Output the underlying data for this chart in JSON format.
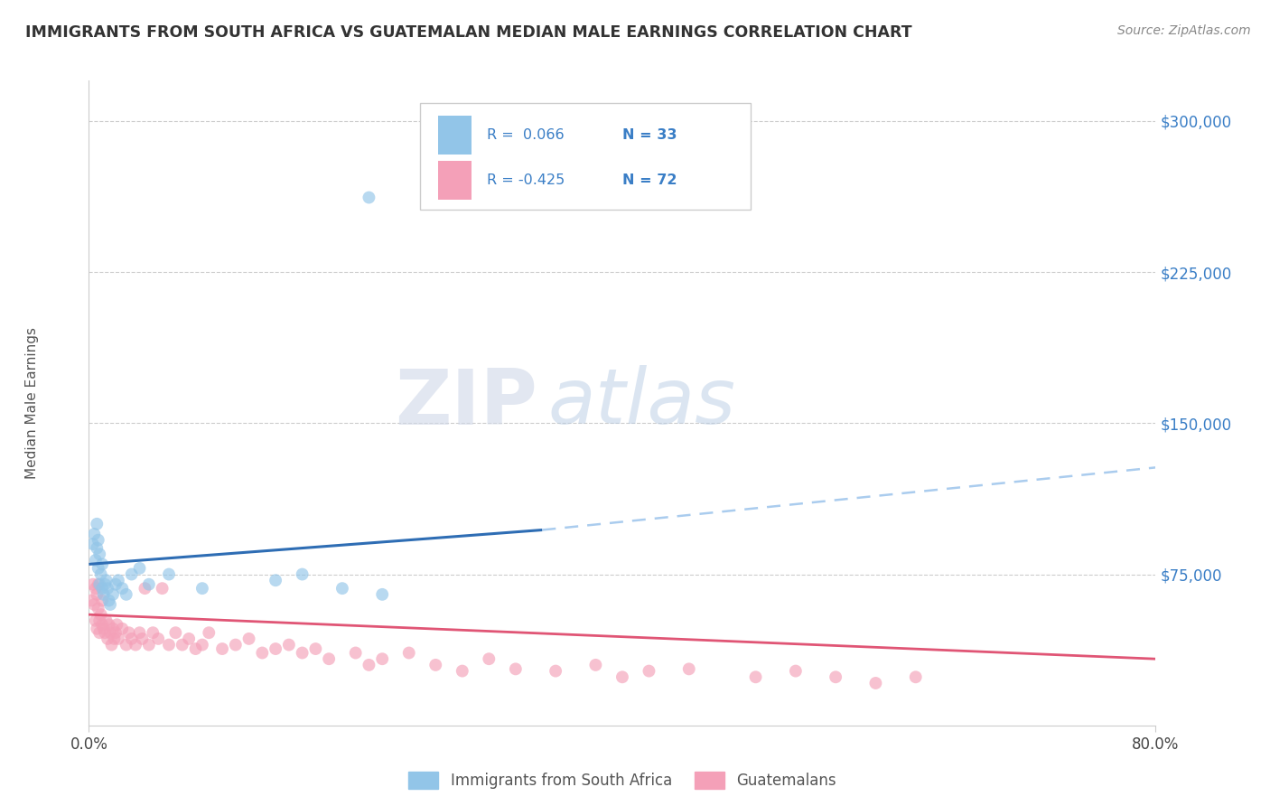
{
  "title": "IMMIGRANTS FROM SOUTH AFRICA VS GUATEMALAN MEDIAN MALE EARNINGS CORRELATION CHART",
  "source": "Source: ZipAtlas.com",
  "ylabel": "Median Male Earnings",
  "xlim": [
    0.0,
    0.8
  ],
  "ylim": [
    0,
    320000
  ],
  "yticks": [
    0,
    75000,
    150000,
    225000,
    300000
  ],
  "ytick_labels": [
    "",
    "$75,000",
    "$150,000",
    "$225,000",
    "$300,000"
  ],
  "xtick_labels": [
    "0.0%",
    "80.0%"
  ],
  "legend_r1": "R =  0.066",
  "legend_n1": "N = 33",
  "legend_r2": "R = -0.425",
  "legend_n2": "N = 72",
  "color_blue": "#92C5E8",
  "color_pink": "#F4A0B8",
  "line_blue": "#2E6DB4",
  "line_pink": "#E05575",
  "line_dashed": "#AACCEE",
  "watermark_zip": "ZIP",
  "watermark_atlas": "atlas",
  "background": "#FFFFFF",
  "blue_scatter_x": [
    0.003,
    0.004,
    0.005,
    0.006,
    0.006,
    0.007,
    0.007,
    0.008,
    0.008,
    0.009,
    0.01,
    0.01,
    0.011,
    0.012,
    0.013,
    0.014,
    0.015,
    0.016,
    0.018,
    0.02,
    0.022,
    0.025,
    0.028,
    0.032,
    0.038,
    0.045,
    0.06,
    0.085,
    0.14,
    0.16,
    0.19,
    0.22,
    0.21
  ],
  "blue_scatter_y": [
    90000,
    95000,
    82000,
    88000,
    100000,
    78000,
    92000,
    85000,
    70000,
    75000,
    80000,
    68000,
    65000,
    70000,
    72000,
    68000,
    62000,
    60000,
    65000,
    70000,
    72000,
    68000,
    65000,
    75000,
    78000,
    70000,
    75000,
    68000,
    72000,
    75000,
    68000,
    65000,
    262000
  ],
  "pink_scatter_x": [
    0.002,
    0.003,
    0.004,
    0.005,
    0.005,
    0.006,
    0.006,
    0.007,
    0.007,
    0.008,
    0.008,
    0.009,
    0.01,
    0.01,
    0.011,
    0.012,
    0.013,
    0.014,
    0.015,
    0.016,
    0.017,
    0.018,
    0.019,
    0.02,
    0.021,
    0.022,
    0.025,
    0.028,
    0.03,
    0.032,
    0.035,
    0.038,
    0.04,
    0.042,
    0.045,
    0.048,
    0.052,
    0.055,
    0.06,
    0.065,
    0.07,
    0.075,
    0.08,
    0.085,
    0.09,
    0.1,
    0.11,
    0.12,
    0.13,
    0.14,
    0.15,
    0.16,
    0.17,
    0.18,
    0.2,
    0.21,
    0.22,
    0.24,
    0.26,
    0.28,
    0.3,
    0.32,
    0.35,
    0.38,
    0.4,
    0.42,
    0.45,
    0.5,
    0.53,
    0.56,
    0.59,
    0.62
  ],
  "pink_scatter_y": [
    62000,
    70000,
    60000,
    68000,
    52000,
    65000,
    48000,
    58000,
    70000,
    46000,
    52000,
    55000,
    50000,
    62000,
    48000,
    46000,
    52000,
    43000,
    50000,
    46000,
    40000,
    48000,
    43000,
    46000,
    50000,
    43000,
    48000,
    40000,
    46000,
    43000,
    40000,
    46000,
    43000,
    68000,
    40000,
    46000,
    43000,
    68000,
    40000,
    46000,
    40000,
    43000,
    38000,
    40000,
    46000,
    38000,
    40000,
    43000,
    36000,
    38000,
    40000,
    36000,
    38000,
    33000,
    36000,
    30000,
    33000,
    36000,
    30000,
    27000,
    33000,
    28000,
    27000,
    30000,
    24000,
    27000,
    28000,
    24000,
    27000,
    24000,
    21000,
    24000
  ],
  "blue_line_x0": 0.0,
  "blue_line_y0": 80000,
  "blue_line_x1": 0.34,
  "blue_line_y1": 97000,
  "dash_line_x0": 0.34,
  "dash_line_y0": 97000,
  "dash_line_x1": 0.8,
  "dash_line_y1": 128000,
  "pink_line_x0": 0.0,
  "pink_line_y0": 55000,
  "pink_line_x1": 0.8,
  "pink_line_y1": 33000
}
